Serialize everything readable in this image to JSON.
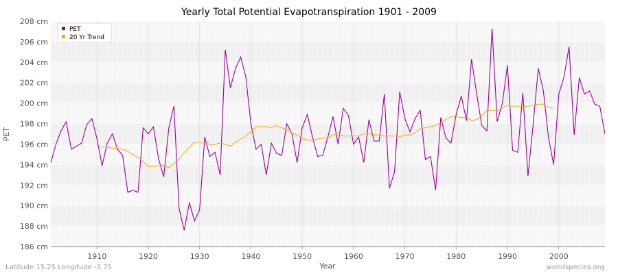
{
  "chart_data": {
    "type": "line",
    "title": "Yearly Total Potential Evapotranspiration 1901 - 2009",
    "xlabel": "Year",
    "ylabel": "PET",
    "xlim": [
      1901,
      2009
    ],
    "ylim": [
      186,
      208
    ],
    "x_ticks": [
      1910,
      1920,
      1930,
      1940,
      1950,
      1960,
      1970,
      1980,
      1990,
      2000
    ],
    "x_tick_labels": [
      "1910",
      "1920",
      "1930",
      "1940",
      "1950",
      "1960",
      "1970",
      "1980",
      "1990",
      "2000"
    ],
    "y_ticks": [
      186,
      188,
      190,
      192,
      194,
      196,
      198,
      200,
      202,
      204,
      206,
      208
    ],
    "y_tick_labels": [
      "186 cm",
      "188 cm",
      "190 cm",
      "192 cm",
      "194 cm",
      "196 cm",
      "198 cm",
      "200 cm",
      "202 cm",
      "204 cm",
      "206 cm",
      "208 cm"
    ],
    "grid": true,
    "legend_position": "top-left",
    "series": [
      {
        "name": "PET",
        "color": "#990099",
        "x": [
          1901,
          1902,
          1903,
          1904,
          1905,
          1906,
          1907,
          1908,
          1909,
          1910,
          1911,
          1912,
          1913,
          1914,
          1915,
          1916,
          1917,
          1918,
          1919,
          1920,
          1921,
          1922,
          1923,
          1924,
          1925,
          1926,
          1927,
          1928,
          1929,
          1930,
          1931,
          1932,
          1933,
          1934,
          1935,
          1936,
          1937,
          1938,
          1939,
          1940,
          1941,
          1942,
          1943,
          1944,
          1945,
          1946,
          1947,
          1948,
          1949,
          1950,
          1951,
          1952,
          1953,
          1954,
          1955,
          1956,
          1957,
          1958,
          1959,
          1960,
          1961,
          1962,
          1963,
          1964,
          1965,
          1966,
          1967,
          1968,
          1969,
          1970,
          1971,
          1972,
          1973,
          1974,
          1975,
          1976,
          1977,
          1978,
          1979,
          1980,
          1981,
          1982,
          1983,
          1984,
          1985,
          1986,
          1987,
          1988,
          1989,
          1990,
          1991,
          1992,
          1993,
          1994,
          1995,
          1996,
          1997,
          1998,
          1999,
          2000,
          2001,
          2002,
          2003,
          2004,
          2005,
          2006,
          2007,
          2008,
          2009
        ],
        "values": [
          194.2,
          196.0,
          197.3,
          198.2,
          195.5,
          195.8,
          196.1,
          197.9,
          198.5,
          196.5,
          193.9,
          196.1,
          197.0,
          195.5,
          194.9,
          191.3,
          191.5,
          191.3,
          197.6,
          197.0,
          197.7,
          194.6,
          192.8,
          197.6,
          199.7,
          189.7,
          187.6,
          190.3,
          188.5,
          189.6,
          196.7,
          194.8,
          195.2,
          193.0,
          205.2,
          201.5,
          203.4,
          204.5,
          202.6,
          198.0,
          195.5,
          196.0,
          193.0,
          196.1,
          195.1,
          194.9,
          198.0,
          197.0,
          194.2,
          197.6,
          198.9,
          196.7,
          194.8,
          194.9,
          196.7,
          198.7,
          196.0,
          199.5,
          198.8,
          196.0,
          196.7,
          194.2,
          198.4,
          196.3,
          196.3,
          200.9,
          191.7,
          193.3,
          201.1,
          198.5,
          197.2,
          198.5,
          199.3,
          194.5,
          194.8,
          191.5,
          198.6,
          196.6,
          196.1,
          198.9,
          200.7,
          198.3,
          204.3,
          200.9,
          197.8,
          197.3,
          207.3,
          198.2,
          200.0,
          203.7,
          195.4,
          195.2,
          201.0,
          192.9,
          197.9,
          203.4,
          201.2,
          196.6,
          194.0,
          200.9,
          202.5,
          205.5,
          196.9,
          202.5,
          200.9,
          201.2,
          199.9,
          199.7,
          197.0
        ]
      },
      {
        "name": "20 Yr Trend",
        "color": "#ffa500",
        "x": [
          1911,
          1912,
          1913,
          1914,
          1915,
          1916,
          1917,
          1918,
          1919,
          1920,
          1921,
          1922,
          1923,
          1924,
          1925,
          1926,
          1927,
          1928,
          1929,
          1930,
          1931,
          1932,
          1933,
          1934,
          1935,
          1936,
          1937,
          1938,
          1939,
          1940,
          1941,
          1942,
          1943,
          1944,
          1945,
          1946,
          1947,
          1948,
          1949,
          1950,
          1951,
          1952,
          1953,
          1954,
          1955,
          1956,
          1957,
          1958,
          1959,
          1960,
          1961,
          1962,
          1963,
          1964,
          1965,
          1966,
          1967,
          1968,
          1969,
          1970,
          1971,
          1972,
          1973,
          1974,
          1975,
          1976,
          1977,
          1978,
          1979,
          1980,
          1981,
          1982,
          1983,
          1984,
          1985,
          1986,
          1987,
          1988,
          1989,
          1990,
          1991,
          1992,
          1993,
          1994,
          1995,
          1996,
          1997,
          1998,
          1999
        ],
        "values": [
          195.7,
          195.7,
          195.6,
          195.6,
          195.5,
          195.3,
          195.0,
          194.7,
          194.3,
          193.8,
          193.8,
          193.9,
          193.9,
          193.7,
          194.1,
          194.5,
          195.2,
          195.7,
          196.2,
          196.2,
          196.1,
          196.0,
          196.0,
          196.1,
          196.0,
          195.8,
          196.2,
          196.5,
          196.8,
          197.2,
          197.7,
          197.7,
          197.7,
          197.6,
          197.8,
          197.6,
          197.4,
          197.1,
          196.9,
          196.6,
          196.4,
          196.4,
          196.5,
          196.6,
          196.6,
          196.9,
          197.0,
          196.8,
          196.8,
          196.8,
          196.8,
          197.0,
          197.0,
          196.9,
          196.9,
          196.8,
          196.8,
          196.8,
          196.7,
          196.9,
          196.9,
          197.1,
          197.5,
          197.6,
          197.7,
          197.8,
          198.1,
          198.4,
          198.7,
          198.7,
          198.6,
          198.6,
          198.3,
          198.4,
          198.8,
          199.3,
          199.3,
          199.3,
          199.5,
          199.8,
          199.7,
          199.7,
          199.7,
          199.7,
          199.8,
          199.9,
          199.9,
          199.6,
          199.5
        ]
      }
    ]
  },
  "footer": {
    "location": "Latitude 15.25 Longitude -3.75",
    "source": "worldspecies.org"
  }
}
